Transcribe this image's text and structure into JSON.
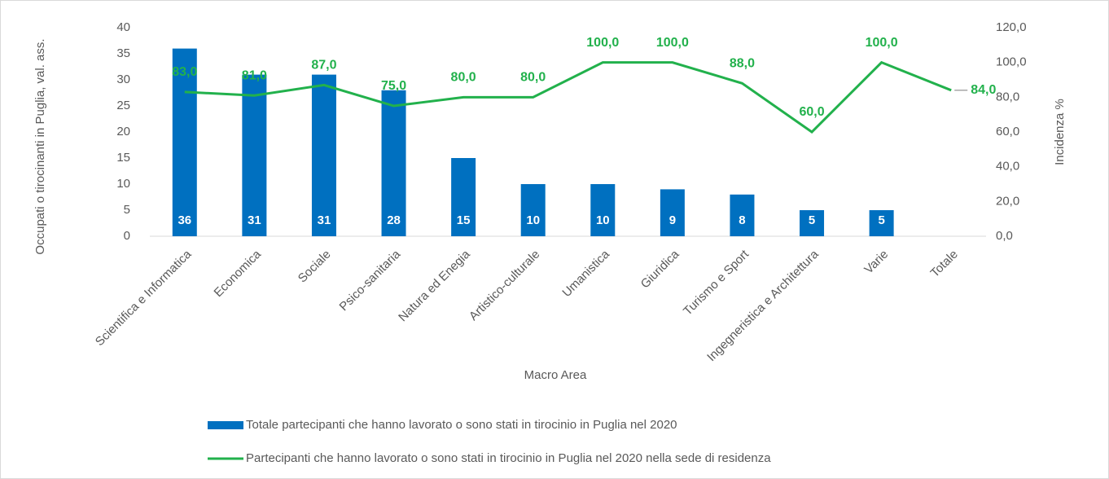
{
  "chart_data": {
    "type": "bar",
    "categories": [
      "Scientifica e Informatica",
      "Economica",
      "Sociale",
      "Psico-sanitaria",
      "Natura ed Enegia",
      "Artistico-culturale",
      "Umanistica",
      "Giuridica",
      "Turismo e Sport",
      "Ingegneristica e Architettura",
      "Varie",
      "Totale"
    ],
    "series": [
      {
        "name": "Totale partecipanti che hanno lavorato o sono stati in tirocinio in Puglia nel 2020",
        "type": "bar",
        "color": "#0070c0",
        "axis": "y",
        "values": [
          36,
          31,
          31,
          28,
          15,
          10,
          10,
          9,
          8,
          5,
          5,
          null
        ]
      },
      {
        "name": "Partecipanti che hanno lavorato o sono stati in tirocinio in Puglia nel 2020 nella sede di residenza",
        "type": "line",
        "color": "#22b14c",
        "axis": "y2",
        "values": [
          83,
          81,
          87,
          75,
          80,
          80,
          100,
          100,
          88,
          60,
          100,
          84
        ],
        "value_labels": [
          "83,0",
          "81,0",
          "87,0",
          "75,0",
          "80,0",
          "80,0",
          "100,0",
          "100,0",
          "88,0",
          "60,0",
          "100,0",
          "84,0"
        ]
      }
    ],
    "x_label": "Macro Area",
    "y_label": "Occupati o tirocinanti in Puglia, val. ass.",
    "y2_label": "Incidenza %",
    "ylim": [
      0,
      40
    ],
    "yticks": [
      0,
      5,
      10,
      15,
      20,
      25,
      30,
      35,
      40
    ],
    "y2lim": [
      0,
      120
    ],
    "y2ticks": [
      {
        "value": 0,
        "label": "0,0"
      },
      {
        "value": 20,
        "label": "20,0"
      },
      {
        "value": 40,
        "label": "40,0"
      },
      {
        "value": 60,
        "label": "60,0"
      },
      {
        "value": 80,
        "label": "80,0"
      },
      {
        "value": 100,
        "label": "100,0"
      },
      {
        "value": 120,
        "label": "120,0"
      }
    ],
    "legend": "bottom"
  }
}
